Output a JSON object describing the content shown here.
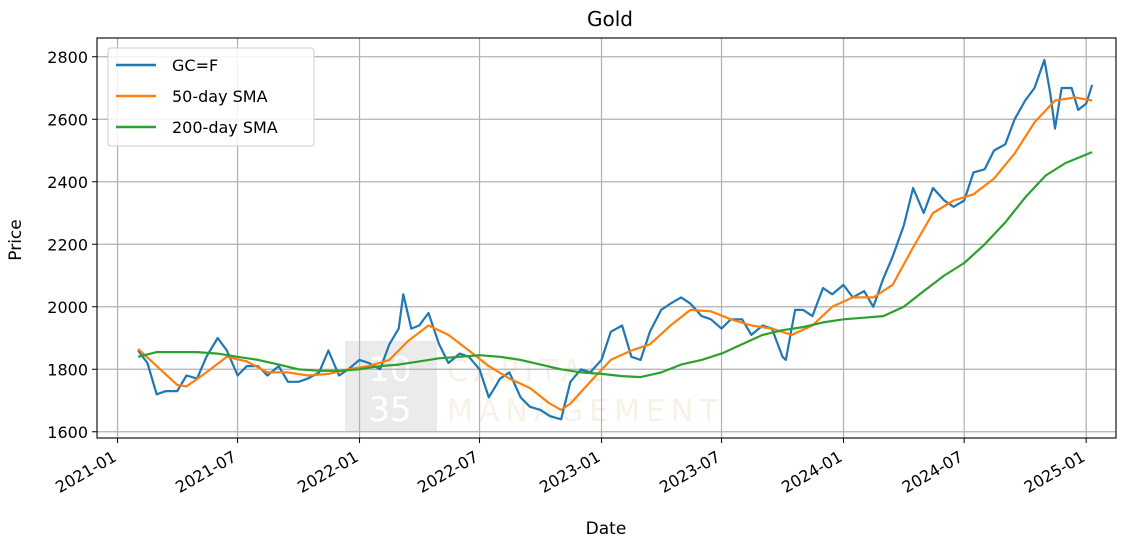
{
  "chart_data": {
    "type": "line",
    "title": "Gold",
    "xlabel": "Date",
    "ylabel": "Price",
    "xlim": [
      "2020-12-01",
      "2025-02-15"
    ],
    "ylim": [
      1580,
      2860
    ],
    "x_ticks": [
      "2021-01",
      "2021-07",
      "2022-01",
      "2022-07",
      "2023-01",
      "2023-07",
      "2024-01",
      "2024-07",
      "2025-01"
    ],
    "y_ticks": [
      1600,
      1800,
      2000,
      2200,
      2400,
      2600,
      2800
    ],
    "grid": true,
    "legend_position": "top-left",
    "series": [
      {
        "name": "GC=F",
        "color": "#1f77b4",
        "points": [
          [
            "2021-02-01",
            1860
          ],
          [
            "2021-02-15",
            1820
          ],
          [
            "2021-03-01",
            1720
          ],
          [
            "2021-03-15",
            1730
          ],
          [
            "2021-04-01",
            1730
          ],
          [
            "2021-04-15",
            1780
          ],
          [
            "2021-05-01",
            1770
          ],
          [
            "2021-05-15",
            1840
          ],
          [
            "2021-06-01",
            1900
          ],
          [
            "2021-06-15",
            1860
          ],
          [
            "2021-07-01",
            1780
          ],
          [
            "2021-07-15",
            1810
          ],
          [
            "2021-08-01",
            1810
          ],
          [
            "2021-08-15",
            1780
          ],
          [
            "2021-09-01",
            1810
          ],
          [
            "2021-09-15",
            1760
          ],
          [
            "2021-10-01",
            1760
          ],
          [
            "2021-10-15",
            1770
          ],
          [
            "2021-11-01",
            1790
          ],
          [
            "2021-11-15",
            1860
          ],
          [
            "2021-12-01",
            1780
          ],
          [
            "2021-12-15",
            1800
          ],
          [
            "2022-01-01",
            1830
          ],
          [
            "2022-01-15",
            1820
          ],
          [
            "2022-02-01",
            1800
          ],
          [
            "2022-02-15",
            1880
          ],
          [
            "2022-03-01",
            1930
          ],
          [
            "2022-03-08",
            2040
          ],
          [
            "2022-03-20",
            1930
          ],
          [
            "2022-04-01",
            1940
          ],
          [
            "2022-04-15",
            1980
          ],
          [
            "2022-05-01",
            1880
          ],
          [
            "2022-05-15",
            1820
          ],
          [
            "2022-06-01",
            1850
          ],
          [
            "2022-06-15",
            1840
          ],
          [
            "2022-07-01",
            1800
          ],
          [
            "2022-07-15",
            1710
          ],
          [
            "2022-08-01",
            1770
          ],
          [
            "2022-08-15",
            1790
          ],
          [
            "2022-09-01",
            1710
          ],
          [
            "2022-09-15",
            1680
          ],
          [
            "2022-10-01",
            1670
          ],
          [
            "2022-10-15",
            1650
          ],
          [
            "2022-11-01",
            1640
          ],
          [
            "2022-11-15",
            1760
          ],
          [
            "2022-12-01",
            1800
          ],
          [
            "2022-12-15",
            1790
          ],
          [
            "2023-01-01",
            1830
          ],
          [
            "2023-01-15",
            1920
          ],
          [
            "2023-02-01",
            1940
          ],
          [
            "2023-02-15",
            1840
          ],
          [
            "2023-03-01",
            1830
          ],
          [
            "2023-03-15",
            1920
          ],
          [
            "2023-04-01",
            1990
          ],
          [
            "2023-04-15",
            2010
          ],
          [
            "2023-05-01",
            2030
          ],
          [
            "2023-05-15",
            2010
          ],
          [
            "2023-06-01",
            1970
          ],
          [
            "2023-06-15",
            1960
          ],
          [
            "2023-07-01",
            1930
          ],
          [
            "2023-07-15",
            1960
          ],
          [
            "2023-08-01",
            1960
          ],
          [
            "2023-08-15",
            1910
          ],
          [
            "2023-09-01",
            1940
          ],
          [
            "2023-09-15",
            1930
          ],
          [
            "2023-10-01",
            1840
          ],
          [
            "2023-10-06",
            1830
          ],
          [
            "2023-10-20",
            1990
          ],
          [
            "2023-11-01",
            1990
          ],
          [
            "2023-11-15",
            1970
          ],
          [
            "2023-12-01",
            2060
          ],
          [
            "2023-12-15",
            2040
          ],
          [
            "2024-01-01",
            2070
          ],
          [
            "2024-01-15",
            2030
          ],
          [
            "2024-02-01",
            2050
          ],
          [
            "2024-02-15",
            2000
          ],
          [
            "2024-03-01",
            2090
          ],
          [
            "2024-03-15",
            2160
          ],
          [
            "2024-04-01",
            2260
          ],
          [
            "2024-04-15",
            2380
          ],
          [
            "2024-05-01",
            2300
          ],
          [
            "2024-05-15",
            2380
          ],
          [
            "2024-06-01",
            2340
          ],
          [
            "2024-06-15",
            2320
          ],
          [
            "2024-07-01",
            2340
          ],
          [
            "2024-07-15",
            2430
          ],
          [
            "2024-08-01",
            2440
          ],
          [
            "2024-08-15",
            2500
          ],
          [
            "2024-09-01",
            2520
          ],
          [
            "2024-09-15",
            2600
          ],
          [
            "2024-10-01",
            2660
          ],
          [
            "2024-10-15",
            2700
          ],
          [
            "2024-10-30",
            2790
          ],
          [
            "2024-11-08",
            2680
          ],
          [
            "2024-11-15",
            2570
          ],
          [
            "2024-11-25",
            2700
          ],
          [
            "2024-12-10",
            2700
          ],
          [
            "2024-12-20",
            2630
          ],
          [
            "2025-01-01",
            2650
          ],
          [
            "2025-01-10",
            2710
          ]
        ]
      },
      {
        "name": "50-day SMA",
        "color": "#ff7f0e",
        "points": [
          [
            "2021-02-01",
            1865
          ],
          [
            "2021-03-01",
            1810
          ],
          [
            "2021-04-01",
            1750
          ],
          [
            "2021-04-15",
            1745
          ],
          [
            "2021-05-15",
            1790
          ],
          [
            "2021-06-15",
            1840
          ],
          [
            "2021-07-15",
            1825
          ],
          [
            "2021-08-15",
            1790
          ],
          [
            "2021-09-15",
            1790
          ],
          [
            "2021-10-15",
            1780
          ],
          [
            "2021-11-15",
            1785
          ],
          [
            "2021-12-15",
            1800
          ],
          [
            "2022-01-15",
            1810
          ],
          [
            "2022-02-15",
            1830
          ],
          [
            "2022-03-15",
            1890
          ],
          [
            "2022-04-15",
            1940
          ],
          [
            "2022-05-15",
            1910
          ],
          [
            "2022-06-15",
            1860
          ],
          [
            "2022-07-15",
            1810
          ],
          [
            "2022-08-15",
            1770
          ],
          [
            "2022-09-15",
            1740
          ],
          [
            "2022-10-15",
            1690
          ],
          [
            "2022-11-01",
            1670
          ],
          [
            "2022-11-15",
            1690
          ],
          [
            "2022-12-15",
            1760
          ],
          [
            "2023-01-15",
            1830
          ],
          [
            "2023-02-15",
            1860
          ],
          [
            "2023-03-15",
            1880
          ],
          [
            "2023-04-15",
            1940
          ],
          [
            "2023-05-15",
            1990
          ],
          [
            "2023-06-15",
            1985
          ],
          [
            "2023-07-15",
            1960
          ],
          [
            "2023-08-15",
            1940
          ],
          [
            "2023-09-15",
            1930
          ],
          [
            "2023-10-15",
            1910
          ],
          [
            "2023-11-15",
            1940
          ],
          [
            "2023-12-15",
            2000
          ],
          [
            "2024-01-15",
            2030
          ],
          [
            "2024-02-15",
            2030
          ],
          [
            "2024-03-15",
            2070
          ],
          [
            "2024-04-15",
            2190
          ],
          [
            "2024-05-15",
            2300
          ],
          [
            "2024-06-15",
            2340
          ],
          [
            "2024-07-15",
            2360
          ],
          [
            "2024-08-15",
            2410
          ],
          [
            "2024-09-15",
            2490
          ],
          [
            "2024-10-15",
            2590
          ],
          [
            "2024-11-15",
            2660
          ],
          [
            "2024-12-15",
            2670
          ],
          [
            "2025-01-10",
            2660
          ]
        ]
      },
      {
        "name": "200-day SMA",
        "color": "#2ca02c",
        "points": [
          [
            "2021-02-01",
            1840
          ],
          [
            "2021-03-01",
            1855
          ],
          [
            "2021-04-01",
            1855
          ],
          [
            "2021-05-01",
            1855
          ],
          [
            "2021-06-01",
            1850
          ],
          [
            "2021-07-01",
            1840
          ],
          [
            "2021-08-01",
            1830
          ],
          [
            "2021-09-01",
            1815
          ],
          [
            "2021-10-01",
            1800
          ],
          [
            "2021-11-01",
            1795
          ],
          [
            "2021-12-01",
            1795
          ],
          [
            "2022-01-01",
            1800
          ],
          [
            "2022-02-01",
            1810
          ],
          [
            "2022-03-01",
            1815
          ],
          [
            "2022-04-01",
            1825
          ],
          [
            "2022-05-01",
            1835
          ],
          [
            "2022-06-01",
            1840
          ],
          [
            "2022-07-01",
            1845
          ],
          [
            "2022-08-01",
            1840
          ],
          [
            "2022-09-01",
            1830
          ],
          [
            "2022-10-01",
            1815
          ],
          [
            "2022-11-01",
            1800
          ],
          [
            "2022-12-01",
            1790
          ],
          [
            "2023-01-01",
            1785
          ],
          [
            "2023-02-01",
            1778
          ],
          [
            "2023-03-01",
            1775
          ],
          [
            "2023-04-01",
            1790
          ],
          [
            "2023-05-01",
            1815
          ],
          [
            "2023-06-01",
            1830
          ],
          [
            "2023-07-01",
            1850
          ],
          [
            "2023-08-01",
            1880
          ],
          [
            "2023-09-01",
            1910
          ],
          [
            "2023-10-01",
            1925
          ],
          [
            "2023-11-01",
            1935
          ],
          [
            "2023-12-01",
            1950
          ],
          [
            "2024-01-01",
            1960
          ],
          [
            "2024-02-01",
            1965
          ],
          [
            "2024-03-01",
            1970
          ],
          [
            "2024-04-01",
            2000
          ],
          [
            "2024-05-01",
            2050
          ],
          [
            "2024-06-01",
            2100
          ],
          [
            "2024-07-01",
            2140
          ],
          [
            "2024-08-01",
            2200
          ],
          [
            "2024-09-01",
            2270
          ],
          [
            "2024-10-01",
            2350
          ],
          [
            "2024-11-01",
            2420
          ],
          [
            "2024-12-01",
            2460
          ],
          [
            "2025-01-10",
            2495
          ]
        ]
      }
    ],
    "watermark": {
      "text_lines": [
        "10",
        "35"
      ],
      "side_text": [
        "CAPITAL",
        "MANAGEMENT"
      ]
    }
  }
}
